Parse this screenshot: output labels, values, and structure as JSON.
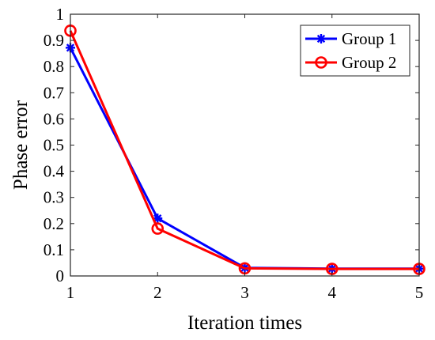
{
  "chart_data": {
    "type": "line",
    "title": "",
    "xlabel": "Iteration times",
    "ylabel": "Phase error",
    "x": [
      1,
      2,
      3,
      4,
      5
    ],
    "xlim": [
      1,
      5
    ],
    "ylim": [
      0,
      1
    ],
    "xticks": [
      "1",
      "2",
      "3",
      "4",
      "5"
    ],
    "yticks": [
      "0",
      "0.1",
      "0.2",
      "0.3",
      "0.4",
      "0.5",
      "0.6",
      "0.7",
      "0.8",
      "0.9",
      "1"
    ],
    "grid": false,
    "legend_position": "top-right",
    "series": [
      {
        "name": "Group 1",
        "color": "#0000ff",
        "marker": "asterisk",
        "values": [
          0.872,
          0.22,
          0.031,
          0.028,
          0.028
        ]
      },
      {
        "name": "Group 2",
        "color": "#ff0000",
        "marker": "circle",
        "values": [
          0.937,
          0.181,
          0.029,
          0.027,
          0.027
        ]
      }
    ]
  }
}
